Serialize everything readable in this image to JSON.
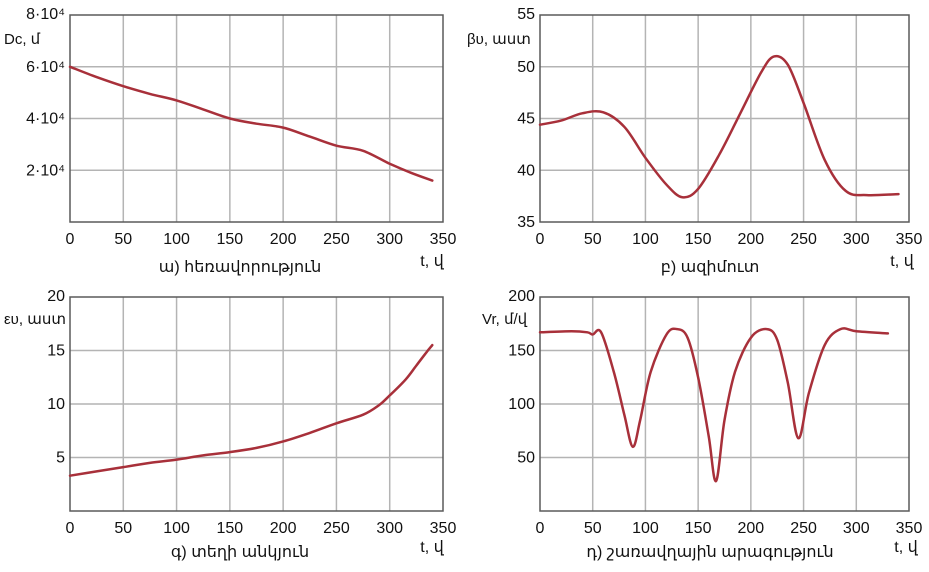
{
  "colors": {
    "line": "#a8303a",
    "grid": "#b4b4b4",
    "frame": "#5a5a5a",
    "text": "#111111"
  },
  "chart_data": [
    {
      "type": "line",
      "caption": "ա) հեռավորություն",
      "xlabel": "t, վ",
      "ylabel": "Dc, մ",
      "xlim": [
        0,
        350
      ],
      "ylim": [
        0,
        80000
      ],
      "grid": true,
      "x_ticks": [
        0,
        50,
        100,
        150,
        200,
        250,
        300,
        350
      ],
      "y_ticks": [
        {
          "value": 20000,
          "label": "2·10⁴"
        },
        {
          "value": 40000,
          "label": "4·10⁴"
        },
        {
          "value": 60000,
          "label": "6·10⁴"
        },
        {
          "value": 80000,
          "label": "8·10⁴"
        }
      ],
      "x": [
        0,
        25,
        50,
        75,
        100,
        125,
        150,
        175,
        200,
        225,
        250,
        275,
        300,
        320,
        340
      ],
      "y": [
        60000,
        56000,
        52500,
        49500,
        47000,
        43500,
        40000,
        38000,
        36500,
        33000,
        29500,
        27500,
        22500,
        19000,
        16000
      ]
    },
    {
      "type": "line",
      "caption": "բ) ազիմուտ",
      "xlabel": "t, վ",
      "ylabel": "βυ, աստ",
      "xlim": [
        0,
        350
      ],
      "ylim": [
        35,
        55
      ],
      "grid": true,
      "x_ticks": [
        0,
        50,
        100,
        150,
        200,
        250,
        300,
        350
      ],
      "y_ticks": [
        {
          "value": 35,
          "label": "35"
        },
        {
          "value": 40,
          "label": "40"
        },
        {
          "value": 45,
          "label": "45"
        },
        {
          "value": 50,
          "label": "50"
        },
        {
          "value": 55,
          "label": "55"
        }
      ],
      "x": [
        0,
        20,
        40,
        60,
        80,
        100,
        120,
        135,
        150,
        170,
        190,
        210,
        222,
        235,
        250,
        270,
        290,
        310,
        340
      ],
      "y": [
        44.4,
        44.8,
        45.5,
        45.6,
        44.2,
        41.2,
        38.6,
        37.4,
        38.2,
        41.5,
        45.5,
        49.5,
        51.0,
        50.2,
        46.5,
        41.0,
        38.0,
        37.6,
        37.7
      ]
    },
    {
      "type": "line",
      "caption": "գ) տեղի անկյուն",
      "xlabel": "t, վ",
      "ylabel": "ευ, աստ",
      "xlim": [
        0,
        350
      ],
      "ylim": [
        0,
        20
      ],
      "grid": true,
      "x_ticks": [
        0,
        50,
        100,
        150,
        200,
        250,
        300,
        350
      ],
      "y_ticks": [
        {
          "value": 5,
          "label": "5"
        },
        {
          "value": 10,
          "label": "10"
        },
        {
          "value": 15,
          "label": "15"
        },
        {
          "value": 20,
          "label": "20"
        }
      ],
      "x": [
        0,
        25,
        50,
        75,
        100,
        125,
        150,
        175,
        200,
        225,
        250,
        275,
        290,
        300,
        315,
        325,
        335,
        340
      ],
      "y": [
        3.3,
        3.7,
        4.1,
        4.5,
        4.8,
        5.2,
        5.5,
        5.9,
        6.5,
        7.3,
        8.2,
        9.0,
        9.9,
        10.8,
        12.3,
        13.6,
        14.9,
        15.5
      ]
    },
    {
      "type": "line",
      "caption": "դ) շառավղային արագություն",
      "xlabel": "t, վ",
      "ylabel": "Vr, մ/վ",
      "xlim": [
        0,
        350
      ],
      "ylim": [
        0,
        200
      ],
      "grid": true,
      "x_ticks": [
        0,
        50,
        100,
        150,
        200,
        250,
        300,
        350
      ],
      "y_ticks": [
        {
          "value": 50,
          "label": "50"
        },
        {
          "value": 100,
          "label": "100"
        },
        {
          "value": 150,
          "label": "150"
        },
        {
          "value": 200,
          "label": "200"
        }
      ],
      "x": [
        0,
        30,
        45,
        50,
        58,
        70,
        80,
        88,
        95,
        105,
        120,
        130,
        140,
        150,
        160,
        167,
        175,
        185,
        200,
        215,
        225,
        235,
        245,
        255,
        270,
        285,
        300,
        330
      ],
      "y": [
        167,
        168,
        167,
        165,
        167,
        130,
        90,
        60,
        85,
        130,
        165,
        170,
        162,
        125,
        70,
        28,
        85,
        130,
        162,
        170,
        160,
        120,
        68,
        110,
        155,
        170,
        168,
        166
      ]
    }
  ]
}
